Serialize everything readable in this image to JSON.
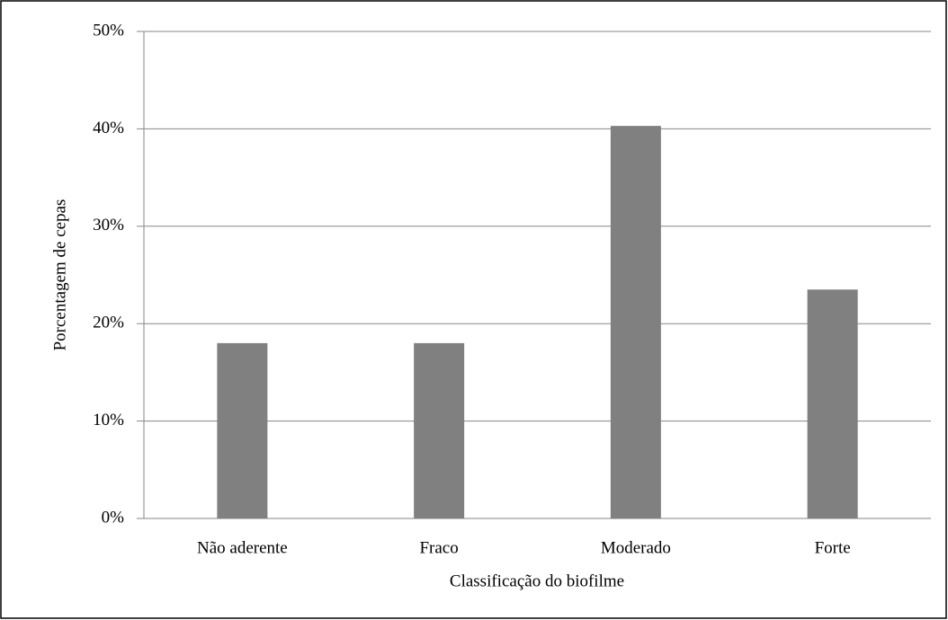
{
  "chart_data": {
    "type": "bar",
    "x_label": "Classificação do biofilme",
    "y_label": "Porcentagem de cepas",
    "categories": [
      "Não aderente",
      "Fraco",
      "Moderado",
      "Forte"
    ],
    "values": [
      18,
      18,
      40.3,
      23.5
    ],
    "color": "#808080",
    "ylim": [
      0,
      50
    ],
    "yticks": [
      {
        "value": 0,
        "label": "0%"
      },
      {
        "value": 10,
        "label": "10%"
      },
      {
        "value": 20,
        "label": "20%"
      },
      {
        "value": 30,
        "label": "30%"
      },
      {
        "value": 40,
        "label": "40%"
      },
      {
        "value": 50,
        "label": "50%"
      }
    ],
    "grid": true
  }
}
